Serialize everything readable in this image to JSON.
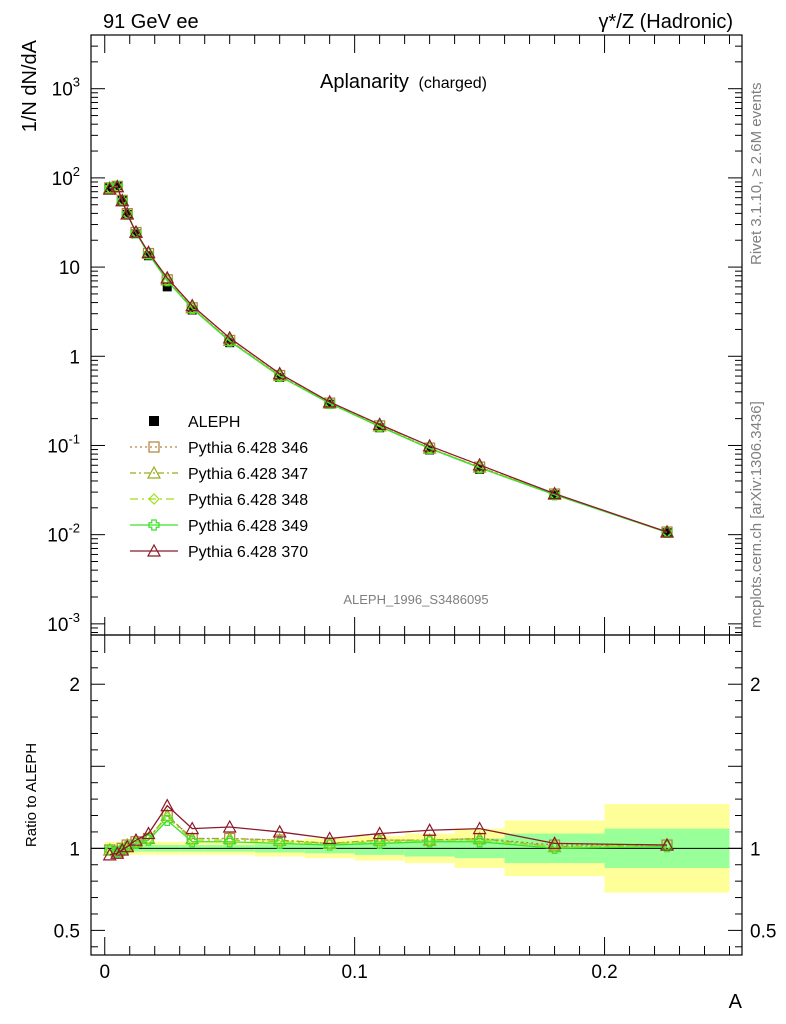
{
  "header": {
    "left": "91 GeV ee",
    "right": "γ*/Z (Hadronic)"
  },
  "title": {
    "main": "Aplanarity",
    "sub": "(charged)"
  },
  "side_texts": {
    "rivet": "Rivet 3.1.10, ≥ 2.6M events",
    "mcplots": "mcplots.cern.ch [arXiv:1306.3436]"
  },
  "analysis_tag": "ALEPH_1996_S3486095",
  "chart_data": {
    "type": "line",
    "xlabel": "A",
    "ylabel": "1/N dN/dA",
    "ratio_ylabel": "Ratio to ALEPH",
    "xlim": [
      -0.0055,
      0.255
    ],
    "ylim": [
      0.00075,
      4000
    ],
    "yscale": "log",
    "ratio_ylim": [
      0.35,
      2.3
    ],
    "main_ytick_labels": [
      {
        "base": "10",
        "exp": "-3",
        "v": 0.001
      },
      {
        "base": "10",
        "exp": "-2",
        "v": 0.01
      },
      {
        "base": "10",
        "exp": "-1",
        "v": 0.1
      },
      {
        "base": "1",
        "exp": "",
        "v": 1
      },
      {
        "base": "10",
        "exp": "",
        "v": 10
      },
      {
        "base": "10",
        "exp": "2",
        "v": 100
      },
      {
        "base": "10",
        "exp": "3",
        "v": 1000
      }
    ],
    "ratio_ytick_labels": [
      "0.5",
      "1",
      "2"
    ],
    "ratio_yticks": [
      0.5,
      1,
      2
    ],
    "xtick_labels": [
      "0",
      "0.1",
      "0.2"
    ],
    "xticks": [
      0,
      0.1,
      0.2
    ],
    "bins": [
      [
        0,
        0.004
      ],
      [
        0.004,
        0.006
      ],
      [
        0.006,
        0.008
      ],
      [
        0.008,
        0.01
      ],
      [
        0.01,
        0.015
      ],
      [
        0.015,
        0.02
      ],
      [
        0.02,
        0.03
      ],
      [
        0.03,
        0.04
      ],
      [
        0.04,
        0.06
      ],
      [
        0.06,
        0.08
      ],
      [
        0.08,
        0.1
      ],
      [
        0.1,
        0.12
      ],
      [
        0.12,
        0.14
      ],
      [
        0.14,
        0.16
      ],
      [
        0.16,
        0.2
      ],
      [
        0.2,
        0.25
      ]
    ],
    "x": [
      0.002,
      0.005,
      0.007,
      0.009,
      0.0125,
      0.0175,
      0.025,
      0.035,
      0.05,
      0.07,
      0.09,
      0.11,
      0.13,
      0.15,
      0.18,
      0.225
    ],
    "data": {
      "name": "ALEPH",
      "values": [
        78,
        82,
        56,
        39,
        23.5,
        13.4,
        6.0,
        3.3,
        1.42,
        0.58,
        0.29,
        0.158,
        0.089,
        0.054,
        0.028,
        0.0105
      ]
    },
    "band_inner": [
      0.02,
      0.02,
      0.02,
      0.02,
      0.02,
      0.02,
      0.02,
      0.02,
      0.02,
      0.025,
      0.03,
      0.04,
      0.05,
      0.06,
      0.09,
      0.12
    ],
    "band_outer": [
      0.04,
      0.04,
      0.04,
      0.04,
      0.04,
      0.04,
      0.04,
      0.04,
      0.04,
      0.05,
      0.06,
      0.075,
      0.09,
      0.12,
      0.17,
      0.27
    ],
    "series": [
      {
        "name": "Pythia 6.428 346",
        "color": "#b5803a",
        "dash": "2,3",
        "marker": "square-open",
        "ratio": [
          0.99,
          0.98,
          1.0,
          1.02,
          1.04,
          1.06,
          1.2,
          1.06,
          1.06,
          1.05,
          1.03,
          1.05,
          1.05,
          1.06,
          1.02,
          1.02
        ]
      },
      {
        "name": "Pythia 6.428 347",
        "color": "#9aab1e",
        "dash": "6,3,2,3",
        "marker": "triangle-open",
        "ratio": [
          0.99,
          0.98,
          1.0,
          1.02,
          1.04,
          1.06,
          1.2,
          1.06,
          1.06,
          1.05,
          1.03,
          1.05,
          1.05,
          1.06,
          1.01,
          1.02
        ]
      },
      {
        "name": "Pythia 6.428 348",
        "color": "#9be01b",
        "dash": "8,4,2,4",
        "marker": "diamond-open",
        "ratio": [
          0.99,
          0.98,
          1.0,
          1.02,
          1.04,
          1.06,
          1.19,
          1.05,
          1.05,
          1.04,
          1.03,
          1.04,
          1.05,
          1.05,
          1.01,
          1.02
        ]
      },
      {
        "name": "Pythia 6.428 349",
        "color": "#3de02d",
        "dash": "",
        "marker": "cross-open",
        "ratio": [
          0.99,
          0.98,
          0.99,
          1.01,
          1.03,
          1.05,
          1.17,
          1.04,
          1.04,
          1.03,
          1.02,
          1.03,
          1.04,
          1.04,
          1.0,
          1.01
        ]
      },
      {
        "name": "Pythia 6.428 370",
        "color": "#8b1a2a",
        "dash": "",
        "marker": "triangle-open",
        "ratio": [
          0.96,
          0.97,
          0.99,
          1.01,
          1.05,
          1.09,
          1.26,
          1.12,
          1.13,
          1.1,
          1.06,
          1.09,
          1.11,
          1.12,
          1.03,
          1.02
        ]
      }
    ]
  }
}
